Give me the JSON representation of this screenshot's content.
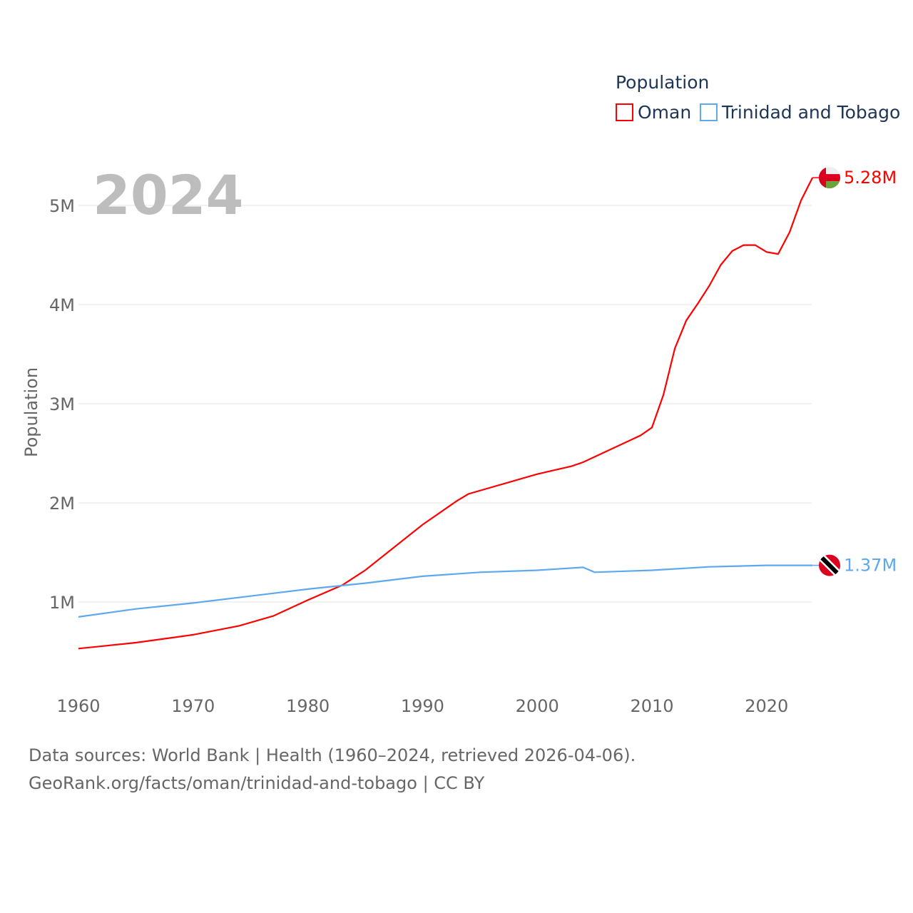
{
  "chart_data": {
    "type": "line",
    "year_label": "2024",
    "ylabel": "Population",
    "xlabel": "",
    "legend_title": "Population",
    "legend_position": "top-right",
    "xlim": [
      1960,
      2024
    ],
    "ylim": [
      0.35,
      5.5
    ],
    "x_ticks": [
      1960,
      1970,
      1980,
      1990,
      2000,
      2010,
      2020
    ],
    "y_ticks": [
      {
        "v": 1,
        "label": "1M"
      },
      {
        "v": 2,
        "label": "2M"
      },
      {
        "v": 3,
        "label": "3M"
      },
      {
        "v": 4,
        "label": "4M"
      },
      {
        "v": 5,
        "label": "5M"
      }
    ],
    "grid": true,
    "series": [
      {
        "name": "Oman",
        "color": "#ff0000",
        "end_label": "5.28M",
        "flag": "oman-flag",
        "points": [
          [
            1960,
            0.53
          ],
          [
            1965,
            0.59
          ],
          [
            1970,
            0.67
          ],
          [
            1974,
            0.76
          ],
          [
            1977,
            0.86
          ],
          [
            1980,
            1.02
          ],
          [
            1983,
            1.17
          ],
          [
            1985,
            1.32
          ],
          [
            1990,
            1.78
          ],
          [
            1993,
            2.02
          ],
          [
            1994,
            2.09
          ],
          [
            2000,
            2.29
          ],
          [
            2003,
            2.37
          ],
          [
            2004,
            2.41
          ],
          [
            2009,
            2.68
          ],
          [
            2010,
            2.76
          ],
          [
            2011,
            3.09
          ],
          [
            2012,
            3.56
          ],
          [
            2013,
            3.84
          ],
          [
            2014,
            4.01
          ],
          [
            2015,
            4.19
          ],
          [
            2016,
            4.4
          ],
          [
            2017,
            4.54
          ],
          [
            2018,
            4.6
          ],
          [
            2019,
            4.6
          ],
          [
            2020,
            4.53
          ],
          [
            2021,
            4.51
          ],
          [
            2022,
            4.73
          ],
          [
            2023,
            5.05
          ],
          [
            2024,
            5.28
          ]
        ]
      },
      {
        "name": "Trinidad and Tobago",
        "color": "#5ea8ef",
        "end_label": "1.37M",
        "flag": "trinidad-and-tobago-flag",
        "points": [
          [
            1960,
            0.85
          ],
          [
            1965,
            0.93
          ],
          [
            1970,
            0.99
          ],
          [
            1975,
            1.06
          ],
          [
            1980,
            1.13
          ],
          [
            1985,
            1.19
          ],
          [
            1990,
            1.26
          ],
          [
            1995,
            1.3
          ],
          [
            2000,
            1.32
          ],
          [
            2004,
            1.35
          ],
          [
            2005,
            1.3
          ],
          [
            2010,
            1.32
          ],
          [
            2015,
            1.355
          ],
          [
            2020,
            1.37
          ],
          [
            2022,
            1.37
          ],
          [
            2024,
            1.37
          ]
        ]
      }
    ]
  },
  "footer": {
    "line1": "Data sources: World Bank | Health (1960–2024, retrieved 2026-04-06).",
    "line2": "GeoRank.org/facts/oman/trinidad-and-tobago | CC BY"
  }
}
